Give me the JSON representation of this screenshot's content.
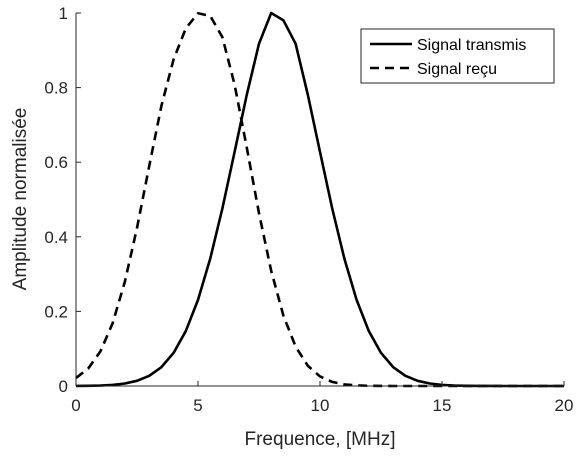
{
  "chart_data": {
    "type": "line",
    "title": "",
    "xlabel": "Frequence, [MHz]",
    "ylabel": "Amplitude normalisée",
    "xlim": [
      0,
      20
    ],
    "ylim": [
      0,
      1
    ],
    "xticks": [
      0,
      5,
      10,
      15,
      20
    ],
    "yticks": [
      0,
      0.2,
      0.4,
      0.6,
      0.8,
      1
    ],
    "ytick_labels": [
      "0",
      "0.2",
      "0.4",
      "0.6",
      "0.8",
      "1"
    ],
    "grid": false,
    "legend_position": "top-right",
    "x": [
      0,
      0.5,
      1,
      1.5,
      2,
      2.5,
      3,
      3.5,
      4,
      4.5,
      5,
      5.5,
      6,
      6.5,
      7,
      7.5,
      8,
      8.5,
      9,
      9.5,
      10,
      10.5,
      11,
      11.5,
      12,
      12.5,
      13,
      13.5,
      14,
      14.5,
      15,
      15.5,
      16,
      16.5,
      17,
      17.5,
      18,
      18.5,
      19,
      19.5,
      20
    ],
    "series": [
      {
        "name": "Signal transmis",
        "style": "solid",
        "color": "#000000",
        "values": [
          0.0002,
          0.0005,
          0.0013,
          0.003,
          0.0067,
          0.0139,
          0.0273,
          0.0506,
          0.0889,
          0.1473,
          0.2308,
          0.3411,
          0.4762,
          0.6276,
          0.7811,
          0.9177,
          1.0,
          0.9804,
          0.9177,
          0.7811,
          0.6276,
          0.4762,
          0.3411,
          0.2308,
          0.1473,
          0.0889,
          0.0506,
          0.0273,
          0.0139,
          0.0067,
          0.003,
          0.0013,
          0.0005,
          0.0002,
          0.0001,
          0,
          0,
          0,
          0,
          0,
          0
        ]
      },
      {
        "name": "Signal reçu",
        "style": "dashed",
        "color": "#000000",
        "values": [
          0.0216,
          0.0468,
          0.0927,
          0.1681,
          0.2789,
          0.4237,
          0.5894,
          0.7509,
          0.8759,
          0.9586,
          0.9993,
          0.9923,
          0.9352,
          0.8079,
          0.6389,
          0.4633,
          0.3087,
          0.1886,
          0.1057,
          0.0543,
          0.0256,
          0.011,
          0.0043,
          0.0016,
          0.0005,
          0.0002,
          0,
          0,
          0,
          0,
          0,
          0,
          0,
          0,
          0,
          0,
          0,
          0,
          0,
          0,
          0
        ]
      }
    ]
  }
}
